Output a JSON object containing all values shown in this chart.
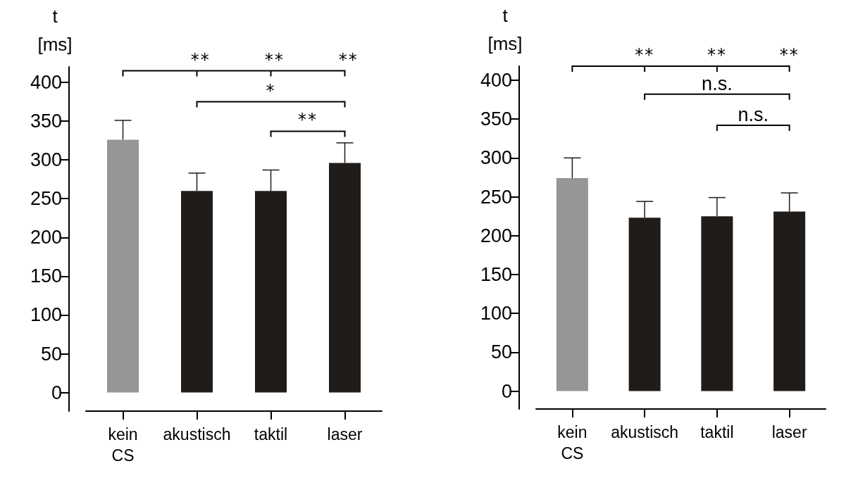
{
  "chart_data": [
    {
      "type": "bar",
      "ylabel": "t [ms]",
      "categories": [
        "kein CS",
        "akustisch",
        "taktil",
        "laser"
      ],
      "values": [
        326,
        260,
        260,
        296
      ],
      "colors": [
        "#969696",
        "#201c1a",
        "#201c1a",
        "#201c1a"
      ],
      "errors": [
        [
          326,
          351
        ],
        [
          260,
          283
        ],
        [
          260,
          287
        ],
        [
          296,
          322
        ]
      ],
      "ylim": [
        -24,
        420
      ],
      "yticks": [
        0,
        50,
        100,
        150,
        200,
        250,
        300,
        350,
        400
      ],
      "annotations": [
        "**",
        "**",
        "**",
        "*",
        "**"
      ]
    },
    {
      "type": "bar",
      "ylabel": "t [ms]",
      "categories": [
        "kein CS",
        "akustisch",
        "taktil",
        "laser"
      ],
      "values": [
        274,
        223,
        225,
        231
      ],
      "colors": [
        "#969696",
        "#201c1a",
        "#201c1a",
        "#201c1a"
      ],
      "errors": [
        [
          274,
          300
        ],
        [
          223,
          244
        ],
        [
          225,
          249
        ],
        [
          231,
          255
        ]
      ],
      "ylim": [
        -23,
        418
      ],
      "yticks": [
        0,
        50,
        100,
        150,
        200,
        250,
        300,
        350,
        400
      ],
      "annotations": [
        "**",
        "**",
        "**",
        "n.s.",
        "n.s."
      ]
    }
  ]
}
